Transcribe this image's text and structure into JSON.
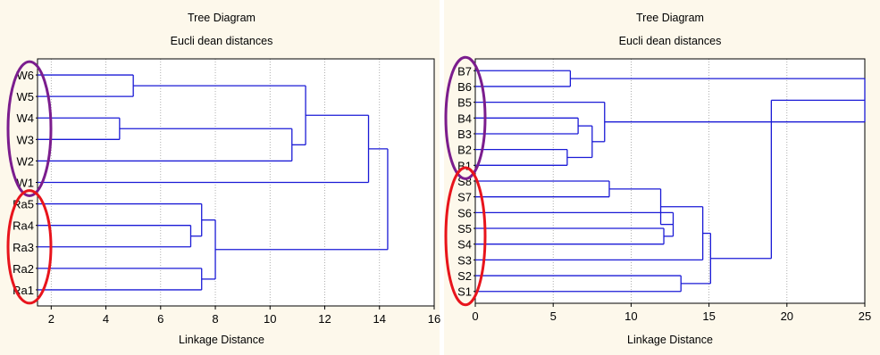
{
  "chart_data": [
    {
      "type": "dendrogram",
      "title": "Tree Diagram",
      "subtitle": "Eucli dean distances",
      "xlabel": "Linkage Distance",
      "ylabel": "",
      "xlim": [
        1.5,
        16
      ],
      "x_ticks": [
        2,
        4,
        6,
        8,
        10,
        12,
        14,
        16
      ],
      "grid": true,
      "leaves": [
        "W6",
        "W5",
        "W4",
        "W3",
        "W2",
        "W1",
        "Ra5",
        "Ra4",
        "Ra3",
        "Ra2",
        "Ra1"
      ],
      "merges": [
        {
          "id": "c1",
          "a": "W6",
          "b": "W5",
          "height": 5.0
        },
        {
          "id": "c2",
          "a": "W4",
          "b": "W3",
          "height": 4.5
        },
        {
          "id": "c3",
          "a": "c2",
          "b": "W2",
          "height": 10.8
        },
        {
          "id": "c4",
          "a": "c1",
          "b": "c3",
          "height": 11.3
        },
        {
          "id": "c5",
          "a": "c4",
          "b": "W1",
          "height": 13.6
        },
        {
          "id": "c6",
          "a": "Ra4",
          "b": "Ra3",
          "height": 7.1
        },
        {
          "id": "c7",
          "a": "Ra5",
          "b": "c6",
          "height": 7.5
        },
        {
          "id": "c8",
          "a": "Ra2",
          "b": "Ra1",
          "height": 7.5
        },
        {
          "id": "c9",
          "a": "c7",
          "b": "c8",
          "height": 8.0
        },
        {
          "id": "c10",
          "a": "c5",
          "b": "c9",
          "height": 14.3
        }
      ],
      "groups": [
        {
          "first": "W6",
          "last": "W1",
          "color": "#7b1d8e"
        },
        {
          "first": "Ra5",
          "last": "Ra1",
          "color": "#e8141c"
        }
      ],
      "line_color": "#1a1ad6"
    },
    {
      "type": "dendrogram",
      "title": "Tree Diagram",
      "subtitle": "Eucli dean distances",
      "xlabel": "Linkage Distance",
      "ylabel": "",
      "xlim": [
        0,
        25
      ],
      "x_ticks": [
        0,
        5,
        10,
        15,
        20,
        25
      ],
      "grid": true,
      "leaves": [
        "B7",
        "B6",
        "B5",
        "B4",
        "B3",
        "B2",
        "B1",
        "S8",
        "S7",
        "S6",
        "S5",
        "S4",
        "S3",
        "S2",
        "S1"
      ],
      "merges": [
        {
          "id": "d1",
          "a": "B7",
          "b": "B6",
          "height": 6.1
        },
        {
          "id": "d2",
          "a": "B4",
          "b": "B3",
          "height": 6.6
        },
        {
          "id": "d3",
          "a": "B2",
          "b": "B1",
          "height": 5.9
        },
        {
          "id": "d4",
          "a": "d2",
          "b": "d3",
          "height": 7.5
        },
        {
          "id": "d5",
          "a": "B5",
          "b": "d4",
          "height": 8.3
        },
        {
          "id": "d6",
          "a": "d1",
          "b": "d5",
          "height": 25.0
        },
        {
          "id": "d7",
          "a": "S8",
          "b": "S7",
          "height": 8.6
        },
        {
          "id": "d8",
          "a": "S5",
          "b": "S4",
          "height": 12.1
        },
        {
          "id": "d9",
          "a": "S6",
          "b": "d8",
          "height": 12.7
        },
        {
          "id": "d10",
          "a": "d7",
          "b": "d9",
          "height": 11.9
        },
        {
          "id": "d11",
          "a": "d10",
          "b": "S3",
          "height": 14.6
        },
        {
          "id": "d12",
          "a": "S2",
          "b": "S1",
          "height": 13.2
        },
        {
          "id": "d13",
          "a": "d11",
          "b": "d12",
          "height": 15.1
        },
        {
          "id": "d14",
          "a": "d13",
          "b": "d6",
          "height": 19.0
        }
      ],
      "groups": [
        {
          "first": "B7",
          "last": "B1",
          "color": "#7b1d8e"
        },
        {
          "first": "S8",
          "last": "S1",
          "color": "#e8141c"
        }
      ],
      "line_color": "#1a1ad6"
    }
  ]
}
